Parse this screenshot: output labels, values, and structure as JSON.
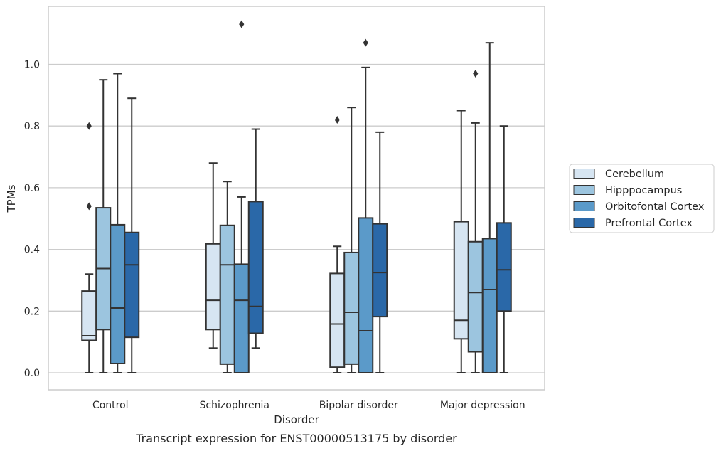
{
  "chart_data": {
    "type": "boxplot",
    "caption": "Transcript expression for ENST00000513175 by disorder",
    "xlabel": "Disorder",
    "ylabel": "TPMs",
    "ylim": [
      -0.055,
      1.19
    ],
    "yticks": [
      0.0,
      0.2,
      0.4,
      0.6,
      0.8,
      1.0
    ],
    "ytick_labels": [
      "0.0",
      "0.2",
      "0.4",
      "0.6",
      "0.8",
      "1.0"
    ],
    "grid": "horizontal",
    "legend_position": "right",
    "categories": [
      "Control",
      "Schizophrenia",
      "Bipolar disorder",
      "Major depression"
    ],
    "series": [
      {
        "name": "Cerebellum",
        "color": "#d6e5f2",
        "boxes": [
          {
            "whisker_low": 0.0,
            "q1": 0.105,
            "median": 0.12,
            "q3": 0.265,
            "whisker_high": 0.32,
            "outliers": [
              0.54,
              0.8
            ]
          },
          {
            "whisker_low": 0.08,
            "q1": 0.14,
            "median": 0.235,
            "q3": 0.418,
            "whisker_high": 0.68,
            "outliers": []
          },
          {
            "whisker_low": 0.0,
            "q1": 0.018,
            "median": 0.158,
            "q3": 0.322,
            "whisker_high": 0.41,
            "outliers": [
              0.82
            ]
          },
          {
            "whisker_low": 0.0,
            "q1": 0.11,
            "median": 0.17,
            "q3": 0.49,
            "whisker_high": 0.85,
            "outliers": []
          }
        ]
      },
      {
        "name": "Hipppocampus",
        "color": "#9cc5df",
        "boxes": [
          {
            "whisker_low": 0.0,
            "q1": 0.14,
            "median": 0.338,
            "q3": 0.535,
            "whisker_high": 0.95,
            "outliers": []
          },
          {
            "whisker_low": 0.0,
            "q1": 0.028,
            "median": 0.35,
            "q3": 0.478,
            "whisker_high": 0.62,
            "outliers": []
          },
          {
            "whisker_low": 0.0,
            "q1": 0.028,
            "median": 0.196,
            "q3": 0.39,
            "whisker_high": 0.86,
            "outliers": []
          },
          {
            "whisker_low": 0.0,
            "q1": 0.068,
            "median": 0.26,
            "q3": 0.425,
            "whisker_high": 0.81,
            "outliers": [
              0.97
            ]
          }
        ]
      },
      {
        "name": "Orbitofontal Cortex",
        "color": "#5b9ac9",
        "boxes": [
          {
            "whisker_low": 0.0,
            "q1": 0.03,
            "median": 0.21,
            "q3": 0.48,
            "whisker_high": 0.97,
            "outliers": []
          },
          {
            "whisker_low": 0.0,
            "q1": 0.0,
            "median": 0.235,
            "q3": 0.352,
            "whisker_high": 0.57,
            "outliers": [
              1.13
            ]
          },
          {
            "whisker_low": 0.0,
            "q1": 0.0,
            "median": 0.136,
            "q3": 0.502,
            "whisker_high": 0.99,
            "outliers": [
              1.07
            ]
          },
          {
            "whisker_low": 0.0,
            "q1": 0.0,
            "median": 0.27,
            "q3": 0.435,
            "whisker_high": 1.07,
            "outliers": []
          }
        ]
      },
      {
        "name": "Prefrontal Cortex",
        "color": "#2a68a8",
        "boxes": [
          {
            "whisker_low": 0.0,
            "q1": 0.115,
            "median": 0.35,
            "q3": 0.455,
            "whisker_high": 0.89,
            "outliers": []
          },
          {
            "whisker_low": 0.08,
            "q1": 0.128,
            "median": 0.215,
            "q3": 0.555,
            "whisker_high": 0.79,
            "outliers": []
          },
          {
            "whisker_low": 0.0,
            "q1": 0.182,
            "median": 0.325,
            "q3": 0.483,
            "whisker_high": 0.78,
            "outliers": []
          },
          {
            "whisker_low": 0.0,
            "q1": 0.2,
            "median": 0.334,
            "q3": 0.486,
            "whisker_high": 0.8,
            "outliers": []
          }
        ]
      }
    ]
  },
  "style": {
    "grid_color": "#cccccc",
    "frame_color": "#cccccc",
    "line_color": "#333333"
  }
}
